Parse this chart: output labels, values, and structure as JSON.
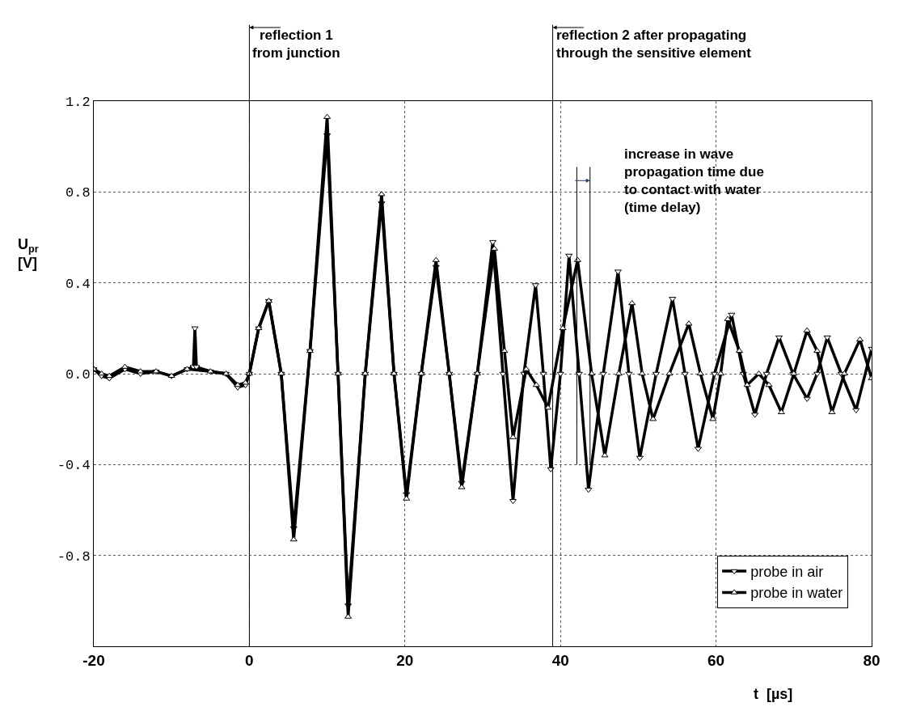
{
  "chart_data": {
    "type": "line",
    "xlabel": "t  [µs]",
    "ylabel": "U$_{pr}$ [V]",
    "xlim": [
      -20,
      80
    ],
    "xticks": [
      -20,
      0,
      20,
      40,
      60,
      80
    ],
    "ylim": [
      -1.2,
      1.2
    ],
    "yticks": [
      {
        "value": -0.8,
        "label": "-0.8"
      },
      {
        "value": -0.4,
        "label": "-0.4"
      },
      {
        "value": 0,
        "label": "0.0"
      },
      {
        "value": 0.4,
        "label": "0.4"
      },
      {
        "value": 0.8,
        "label": "0.8"
      },
      {
        "value": 1.2,
        "label": "1.2"
      }
    ],
    "grid": true,
    "legend": "bottom right",
    "marker": "triangle",
    "line_style": "solid",
    "series": [
      {
        "name": "probe in air",
        "color": "#000000",
        "x": [
          -20,
          -19,
          -18,
          -16,
          -14,
          -12,
          -10,
          -8,
          -7.2,
          -7,
          -6.8,
          -5,
          -3,
          -1.5,
          -0.5,
          0,
          1.2,
          2.5,
          4.1,
          5.7,
          7.8,
          10.0,
          11.4,
          12.7,
          14.9,
          17.0,
          18.6,
          20.2,
          22.1,
          24.0,
          25.7,
          27.3,
          29.3,
          31.3,
          32.6,
          33.9,
          35.3,
          36.8,
          37.8,
          38.75,
          40,
          41.1,
          42.4,
          43.6,
          45.5,
          47.4,
          48.8,
          50.2,
          52.3,
          54.4,
          56,
          57.7,
          59.8,
          62,
          63.5,
          65,
          66.5,
          68.1,
          69.9,
          71.7,
          73,
          74.3,
          76.1,
          78,
          80
        ],
        "values": [
          0.02,
          -0.01,
          -0.02,
          0.02,
          0.0,
          0.01,
          -0.01,
          0.02,
          0.03,
          0.2,
          0.03,
          0.01,
          0.0,
          -0.06,
          -0.05,
          0.0,
          0.2,
          0.32,
          0.0,
          -0.68,
          0.1,
          1.05,
          0.0,
          -1.02,
          0.0,
          0.75,
          0.0,
          -0.53,
          0.0,
          0.47,
          0.0,
          -0.48,
          0.0,
          0.58,
          0.0,
          -0.56,
          0.0,
          0.39,
          0.0,
          -0.42,
          0.0,
          0.52,
          0.0,
          -0.51,
          0.0,
          0.45,
          0.0,
          -0.37,
          0.0,
          0.33,
          0.0,
          -0.33,
          0.0,
          0.26,
          0.0,
          -0.18,
          0.0,
          0.16,
          0.0,
          -0.11,
          0.0,
          0.16,
          0.0,
          -0.16,
          0.11
        ]
      },
      {
        "name": "probe in water",
        "color": "#000000",
        "x": [
          -20,
          -19,
          -18,
          -16,
          -14,
          -12,
          -10,
          -8,
          -5,
          -3,
          -1.5,
          -0.5,
          0,
          1.2,
          2.5,
          4.1,
          5.7,
          7.8,
          10.0,
          11.4,
          12.7,
          14.9,
          17.0,
          18.6,
          20.2,
          22.1,
          24.0,
          25.7,
          27.3,
          29.3,
          31.5,
          32.8,
          33.9,
          35.6,
          36.9,
          38.4,
          40.3,
          42.2,
          44,
          45.7,
          47.5,
          49.2,
          50.5,
          51.9,
          54,
          56.5,
          58,
          59.6,
          60.6,
          61.5,
          63,
          64,
          65.5,
          66.8,
          68.4,
          70,
          71.7,
          73,
          74.9,
          76.5,
          78.5,
          80
        ],
        "values": [
          0.02,
          0.0,
          -0.01,
          0.03,
          0.01,
          0.01,
          -0.01,
          0.02,
          0.01,
          0.0,
          -0.05,
          -0.04,
          0.0,
          0.2,
          0.32,
          0.0,
          -0.73,
          0.1,
          1.13,
          0.0,
          -1.07,
          0.0,
          0.79,
          0.0,
          -0.55,
          0.0,
          0.5,
          0.0,
          -0.5,
          0.0,
          0.55,
          0.1,
          -0.28,
          0.02,
          -0.05,
          -0.15,
          0.2,
          0.5,
          0.0,
          -0.36,
          0.0,
          0.31,
          0.0,
          -0.2,
          0.0,
          0.22,
          0.0,
          -0.2,
          0.0,
          0.24,
          0.1,
          -0.05,
          0.0,
          -0.05,
          -0.17,
          0.0,
          0.19,
          0.1,
          -0.17,
          0.0,
          0.15,
          -0.02
        ]
      }
    ],
    "ref_lines": [
      {
        "axis": "x",
        "value": 0,
        "label": "reflection 1 from junction",
        "color": "#000000",
        "line_style": "solid"
      },
      {
        "axis": "x",
        "value": 39,
        "label": "reflection 2 after propagating through the sensitive element",
        "color": "#000000",
        "line_style": "solid"
      },
      {
        "axis": "x",
        "value": 42.1,
        "color": "#000000",
        "line_style": "solid"
      },
      {
        "axis": "x",
        "value": 43.8,
        "color": "#000000",
        "line_style": "solid"
      }
    ],
    "annotations": [
      {
        "text": "increase in wave propagation time due to contact with water (time delay)",
        "x": 43.8,
        "y": 0.85
      }
    ]
  }
}
